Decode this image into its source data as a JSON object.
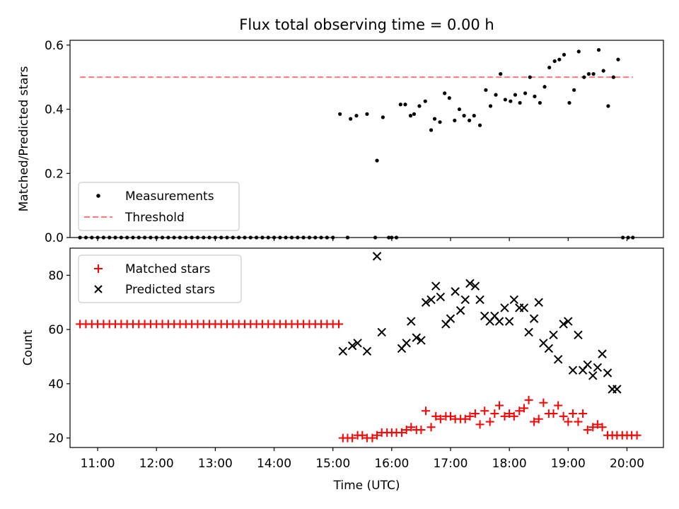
{
  "chart_data": [
    {
      "type": "scatter",
      "title": "Flux total observing time = 0.00 h",
      "ylabel": "Matched/Predicted stars",
      "xlim": [
        10.53,
        20.62
      ],
      "ylim": [
        0,
        0.615
      ],
      "yticks": [
        0.0,
        0.2,
        0.4,
        0.6
      ],
      "ytick_labels": [
        "0.0",
        "0.2",
        "0.4",
        "0.6"
      ],
      "legend_position": "lower-left",
      "series": [
        {
          "name": "Measurements",
          "color": "#000000",
          "marker": "dot",
          "x": [
            10.7,
            10.8,
            10.9,
            11.0,
            11.1,
            11.2,
            11.3,
            11.4,
            11.5,
            11.6,
            11.7,
            11.8,
            11.9,
            12.0,
            12.1,
            12.2,
            12.3,
            12.4,
            12.5,
            12.6,
            12.7,
            12.8,
            12.9,
            13.0,
            13.1,
            13.2,
            13.3,
            13.4,
            13.5,
            13.6,
            13.7,
            13.8,
            13.9,
            14.0,
            14.1,
            14.2,
            14.3,
            14.4,
            14.5,
            14.6,
            14.7,
            14.8,
            14.9,
            15.0,
            15.12,
            15.25,
            15.3,
            15.4,
            15.58,
            15.72,
            15.75,
            15.85,
            15.95,
            16.0,
            16.08,
            16.15,
            16.23,
            16.32,
            16.38,
            16.47,
            16.57,
            16.67,
            16.73,
            16.82,
            16.9,
            16.98,
            17.07,
            17.15,
            17.23,
            17.32,
            17.4,
            17.5,
            17.6,
            17.68,
            17.77,
            17.85,
            17.93,
            18.02,
            18.1,
            18.18,
            18.27,
            18.35,
            18.43,
            18.52,
            18.6,
            18.68,
            18.77,
            18.85,
            18.93,
            19.02,
            19.1,
            19.18,
            19.27,
            19.35,
            19.43,
            19.52,
            19.6,
            19.68,
            19.77,
            19.85,
            19.93,
            20.02,
            20.1
          ],
          "y": [
            0,
            0,
            0,
            0,
            0,
            0,
            0,
            0,
            0,
            0,
            0,
            0,
            0,
            0,
            0,
            0,
            0,
            0,
            0,
            0,
            0,
            0,
            0,
            0,
            0,
            0,
            0,
            0,
            0,
            0,
            0,
            0,
            0,
            0,
            0,
            0,
            0,
            0,
            0,
            0,
            0,
            0,
            0,
            0,
            0.385,
            0,
            0.37,
            0.38,
            0.385,
            0,
            0.24,
            0.375,
            0,
            0,
            0,
            0.415,
            0.415,
            0.38,
            0.385,
            0.41,
            0.425,
            0.335,
            0.37,
            0.36,
            0.45,
            0.435,
            0.365,
            0.4,
            0.38,
            0.365,
            0.38,
            0.35,
            0.46,
            0.41,
            0.445,
            0.51,
            0.43,
            0.425,
            0.445,
            0.42,
            0.45,
            0.5,
            0.44,
            0.42,
            0.47,
            0.53,
            0.55,
            0.555,
            0.57,
            0.42,
            0.46,
            0.58,
            0.5,
            0.51,
            0.51,
            0.585,
            0.52,
            0.41,
            0.5,
            0.555,
            0,
            0,
            0
          ]
        },
        {
          "name": "Threshold",
          "color": "#ff7777",
          "style": "dashed",
          "x": [
            10.7,
            20.1
          ],
          "y": [
            0.5,
            0.5
          ]
        }
      ]
    },
    {
      "type": "scatter",
      "xlabel": "Time (UTC)",
      "ylabel": "Count",
      "xlim": [
        10.53,
        20.62
      ],
      "ylim": [
        16.5,
        90
      ],
      "xticks": [
        11,
        12,
        13,
        14,
        15,
        16,
        17,
        18,
        19,
        20
      ],
      "xtick_labels": [
        "11:00",
        "12:00",
        "13:00",
        "14:00",
        "15:00",
        "16:00",
        "17:00",
        "18:00",
        "19:00",
        "20:00"
      ],
      "yticks": [
        20,
        40,
        60,
        80
      ],
      "ytick_labels": [
        "20",
        "40",
        "60",
        "80"
      ],
      "legend_position": "top-left",
      "series": [
        {
          "name": "Matched stars",
          "color": "#ff0000",
          "marker": "plus",
          "x": [
            10.7,
            10.8,
            10.9,
            11.0,
            11.1,
            11.2,
            11.3,
            11.4,
            11.5,
            11.6,
            11.7,
            11.8,
            11.9,
            12.0,
            12.1,
            12.2,
            12.3,
            12.4,
            12.5,
            12.6,
            12.7,
            12.8,
            12.9,
            13.0,
            13.1,
            13.2,
            13.3,
            13.4,
            13.5,
            13.6,
            13.7,
            13.8,
            13.9,
            14.0,
            14.1,
            14.2,
            14.3,
            14.4,
            14.5,
            14.6,
            14.7,
            14.8,
            14.9,
            15.0,
            15.1,
            15.17,
            15.25,
            15.33,
            15.42,
            15.5,
            15.58,
            15.67,
            15.75,
            15.83,
            15.92,
            16.0,
            16.08,
            16.17,
            16.25,
            16.33,
            16.42,
            16.5,
            16.58,
            16.67,
            16.75,
            16.83,
            16.92,
            17.0,
            17.08,
            17.17,
            17.25,
            17.33,
            17.42,
            17.5,
            17.58,
            17.67,
            17.75,
            17.83,
            17.92,
            18.0,
            18.08,
            18.17,
            18.25,
            18.33,
            18.42,
            18.5,
            18.58,
            18.67,
            18.75,
            18.83,
            18.92,
            19.0,
            19.08,
            19.17,
            19.25,
            19.33,
            19.42,
            19.5,
            19.58,
            19.67,
            19.75,
            19.83,
            19.92,
            20.0,
            20.08,
            20.17
          ],
          "y": [
            62,
            62,
            62,
            62,
            62,
            62,
            62,
            62,
            62,
            62,
            62,
            62,
            62,
            62,
            62,
            62,
            62,
            62,
            62,
            62,
            62,
            62,
            62,
            62,
            62,
            62,
            62,
            62,
            62,
            62,
            62,
            62,
            62,
            62,
            62,
            62,
            62,
            62,
            62,
            62,
            62,
            62,
            62,
            62,
            62,
            20,
            20,
            20,
            21,
            21,
            20,
            20,
            21,
            22,
            22,
            22,
            22,
            22,
            23,
            24,
            23,
            23,
            30,
            24,
            28,
            27,
            28,
            28,
            27,
            27,
            27,
            28,
            29,
            25,
            30,
            26,
            29,
            32,
            28,
            29,
            28,
            30,
            31,
            34,
            26,
            27,
            33,
            29,
            29,
            32,
            28,
            26,
            29,
            26,
            29,
            23,
            24,
            25,
            24,
            21,
            21,
            21,
            21,
            21,
            21,
            21
          ]
        },
        {
          "name": "Predicted stars",
          "color": "#000000",
          "marker": "x",
          "x": [
            15.17,
            15.33,
            15.42,
            15.58,
            15.75,
            15.83,
            16.17,
            16.25,
            16.33,
            16.42,
            16.5,
            16.58,
            16.67,
            16.75,
            16.83,
            16.92,
            17.0,
            17.08,
            17.17,
            17.25,
            17.33,
            17.42,
            17.5,
            17.58,
            17.67,
            17.75,
            17.83,
            17.92,
            18.0,
            18.08,
            18.17,
            18.25,
            18.33,
            18.42,
            18.5,
            18.58,
            18.67,
            18.75,
            18.83,
            18.92,
            19.0,
            19.08,
            19.17,
            19.25,
            19.33,
            19.42,
            19.5,
            19.58,
            19.67,
            19.75,
            19.83
          ],
          "y": [
            52,
            54,
            55,
            52,
            87,
            59,
            53,
            55,
            63,
            57,
            56,
            70,
            71,
            76,
            72,
            62,
            64,
            74,
            67,
            71,
            77,
            76,
            71,
            65,
            63,
            65,
            63,
            68,
            63,
            71,
            68,
            68,
            59,
            64,
            70,
            55,
            53,
            58,
            49,
            62,
            63,
            45,
            58,
            45,
            47,
            43,
            46,
            51,
            44,
            38,
            38
          ]
        }
      ]
    }
  ]
}
